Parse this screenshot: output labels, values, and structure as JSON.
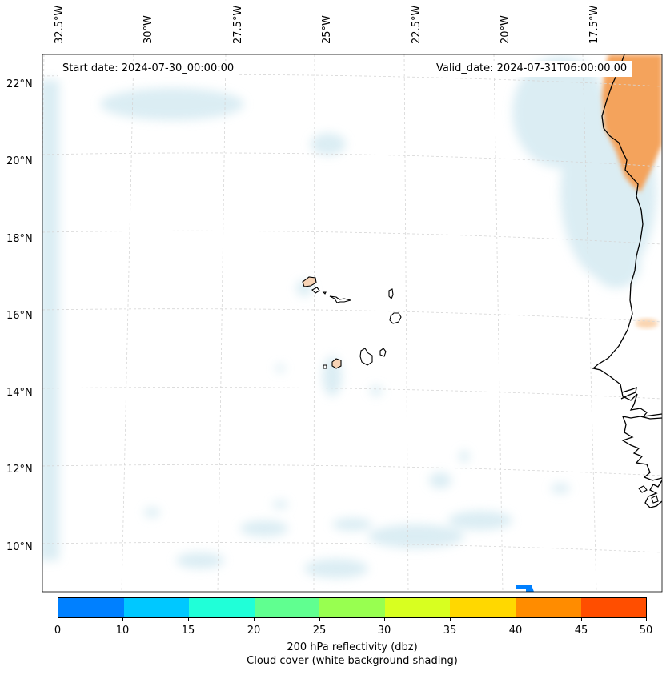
{
  "map": {
    "start_date": "Start date: 2024-07-30_00:00:00",
    "valid_date": "Valid_date: 2024-07-31T06:00:00.00",
    "lon_labels": [
      "32.5°W",
      "30°W",
      "27.5°W",
      "25°W",
      "22.5°W",
      "20°W",
      "17.5°W"
    ],
    "lat_labels": [
      "22°N",
      "20°N",
      "18°N",
      "16°N",
      "14°N",
      "12°N",
      "10°N"
    ],
    "colors": {
      "cloud": "#cfe7f0",
      "reflectivity_high": "#f4a35b",
      "coastline": "#000000",
      "grid": "#cccccc"
    }
  },
  "colorbar": {
    "ticks": [
      "0",
      "10",
      "15",
      "20",
      "25",
      "30",
      "35",
      "40",
      "45",
      "50"
    ],
    "colors": [
      "#0080ff",
      "#00c8ff",
      "#20ffd8",
      "#60ff90",
      "#98ff50",
      "#d8ff20",
      "#ffd800",
      "#ff8c00",
      "#ff4e00"
    ],
    "label_line1": "200 hPa reflectivity (dbz)",
    "label_line2": "Cloud cover (white background shading)"
  }
}
